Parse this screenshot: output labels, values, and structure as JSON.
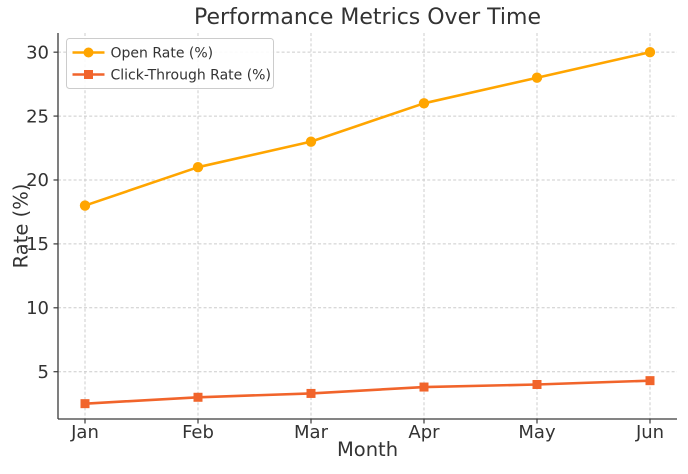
{
  "chart_data": {
    "type": "line",
    "title": "Performance Metrics Over Time",
    "xlabel": "Month",
    "ylabel": "Rate (%)",
    "categories": [
      "Jan",
      "Feb",
      "Mar",
      "Apr",
      "May",
      "Jun"
    ],
    "series": [
      {
        "name": "Open Rate (%)",
        "color": "#FFA500",
        "marker": "circle",
        "values": [
          18,
          21,
          23,
          26,
          28,
          30
        ]
      },
      {
        "name": "Click-Through Rate (%)",
        "color": "#F1642B",
        "marker": "square",
        "values": [
          2.5,
          3.0,
          3.3,
          3.8,
          4.0,
          4.3
        ]
      }
    ],
    "yticks": [
      5,
      10,
      15,
      20,
      25,
      30
    ],
    "ylim": [
      1.3,
      31.5
    ],
    "grid": true,
    "grid_style": "dashed",
    "legend_position": "upper left",
    "colors": {
      "grid": "#cccccc",
      "spine": "#3a3a3a",
      "text": "#333333",
      "legend_border": "#cccccc",
      "legend_background": "#ffffff",
      "background": "#ffffff"
    }
  }
}
